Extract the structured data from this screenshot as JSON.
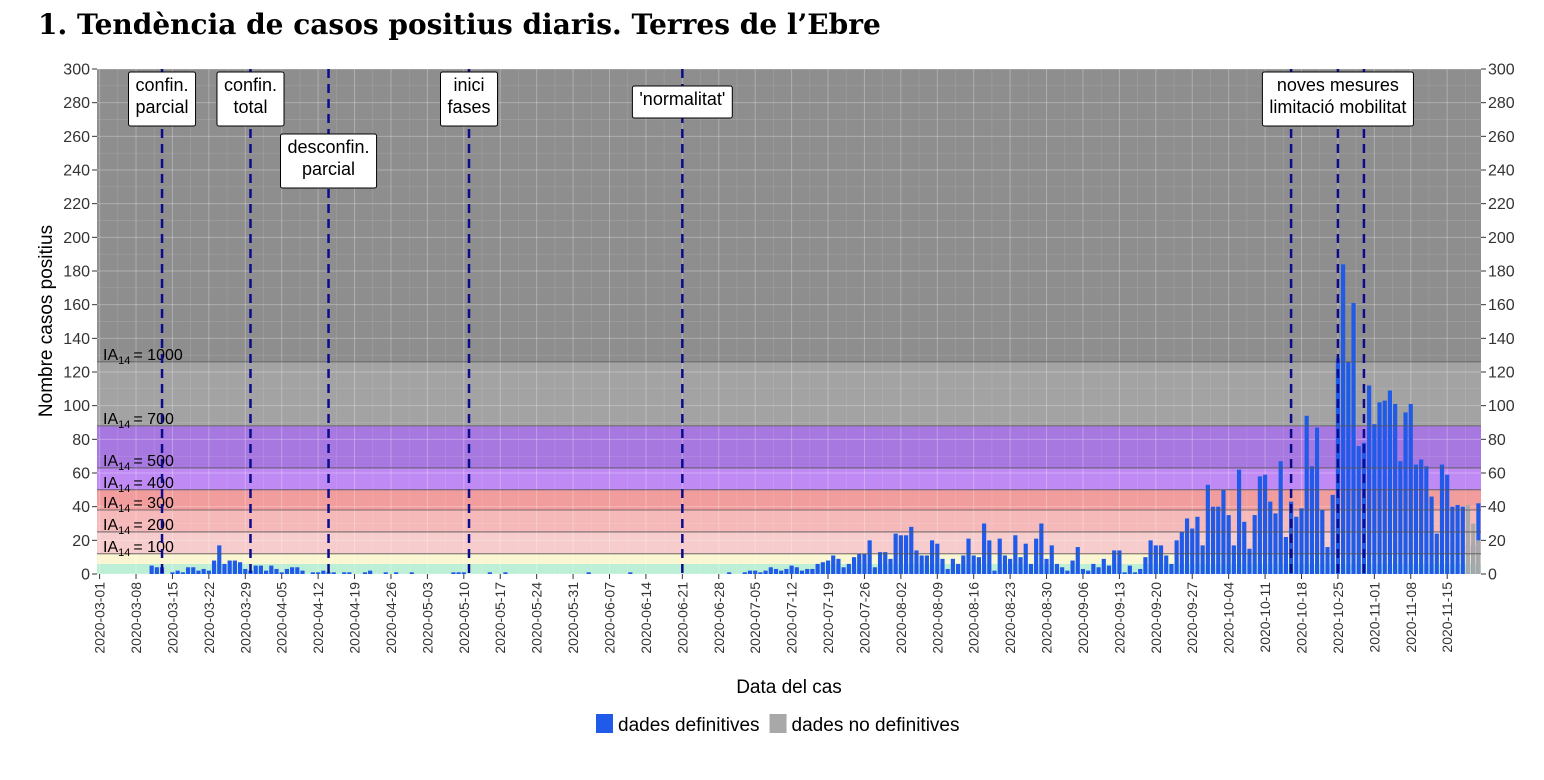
{
  "chart_data": {
    "type": "bar",
    "title": "1.  Tendència de casos positius diaris.  Terres de l’Ebre",
    "xlabel": "Data del cas",
    "ylabel": "Nombre casos positius",
    "ylim": [
      0,
      300
    ],
    "yticks": [
      0,
      20,
      40,
      60,
      80,
      100,
      120,
      140,
      160,
      180,
      200,
      220,
      240,
      260,
      280,
      300
    ],
    "x_start": "2020-03-01",
    "x_end": "2020-11-21",
    "x_tick_labels": [
      "2020-03-01",
      "2020-03-08",
      "2020-03-15",
      "2020-03-22",
      "2020-03-29",
      "2020-04-05",
      "2020-04-12",
      "2020-04-19",
      "2020-04-26",
      "2020-05-03",
      "2020-05-10",
      "2020-05-17",
      "2020-05-24",
      "2020-05-31",
      "2020-06-07",
      "2020-06-14",
      "2020-06-21",
      "2020-06-28",
      "2020-07-05",
      "2020-07-12",
      "2020-07-19",
      "2020-07-26",
      "2020-08-02",
      "2020-08-09",
      "2020-08-16",
      "2020-08-23",
      "2020-08-30",
      "2020-09-06",
      "2020-09-13",
      "2020-09-20",
      "2020-09-27",
      "2020-10-04",
      "2020-10-11",
      "2020-10-18",
      "2020-10-25",
      "2020-11-01",
      "2020-11-08",
      "2020-11-15"
    ],
    "bands": [
      {
        "from": 0,
        "to": 6,
        "color": "#bdefd6"
      },
      {
        "from": 6,
        "to": 12,
        "color": "#fbf6d2"
      },
      {
        "from": 12,
        "to": 25,
        "color": "#f7cccd"
      },
      {
        "from": 25,
        "to": 38,
        "color": "#f5b9ba"
      },
      {
        "from": 38,
        "to": 50,
        "color": "#f29d9d"
      },
      {
        "from": 50,
        "to": 63,
        "color": "#c08af5"
      },
      {
        "from": 63,
        "to": 88,
        "color": "#a778e0"
      },
      {
        "from": 88,
        "to": 126,
        "color": "#a3a3a3"
      },
      {
        "from": 126,
        "to": 300,
        "color": "#8e8e8e"
      }
    ],
    "thresholds": [
      {
        "base": "IA",
        "sub": "14",
        "value": "= 100",
        "y": 12
      },
      {
        "base": "IA",
        "sub": "14",
        "value": "= 200",
        "y": 25
      },
      {
        "base": "IA",
        "sub": "14",
        "value": "= 300",
        "y": 38
      },
      {
        "base": "IA",
        "sub": "14",
        "value": "= 400",
        "y": 50
      },
      {
        "base": "IA",
        "sub": "14",
        "value": "= 500",
        "y": 63
      },
      {
        "base": "IA",
        "sub": "14",
        "value": "= 700",
        "y": 88
      },
      {
        "base": "IA",
        "sub": "14",
        "value": "= 1000",
        "y": 126
      }
    ],
    "events": [
      {
        "date": "2020-03-13",
        "lines": [
          "confin.",
          "parcial"
        ],
        "pos": "top"
      },
      {
        "date": "2020-03-30",
        "lines": [
          "confin.",
          "total"
        ],
        "pos": "top"
      },
      {
        "date": "2020-04-14",
        "lines": [
          "desconfin.",
          "parcial"
        ],
        "pos": "mid"
      },
      {
        "date": "2020-05-11",
        "lines": [
          "inici",
          "fases"
        ],
        "pos": "top"
      },
      {
        "date": "2020-06-21",
        "lines": [
          "'normalitat'"
        ],
        "pos": "single"
      },
      {
        "date": "2020-10-16",
        "lines": [],
        "pos": "none"
      },
      {
        "date": "2020-10-25",
        "lines": [
          "noves mesures",
          "limitació mobilitat"
        ],
        "pos": "top"
      },
      {
        "date": "2020-10-30",
        "lines": [],
        "pos": "none"
      }
    ],
    "series": [
      {
        "name": "dades definitives",
        "color": "#1f5ae8",
        "start": "2020-03-01",
        "values": [
          0,
          0,
          0,
          0,
          0,
          0,
          0,
          0,
          0,
          0,
          5,
          4,
          4,
          0,
          1,
          2,
          1,
          4,
          4,
          2,
          3,
          2,
          8,
          17,
          6,
          8,
          8,
          7,
          3,
          2,
          5,
          5,
          2,
          5,
          3,
          1,
          3,
          4,
          4,
          2,
          0,
          1,
          1,
          2,
          1,
          1,
          0,
          1,
          1,
          0,
          0,
          1,
          2,
          0,
          0,
          1,
          0,
          1,
          0,
          0,
          1,
          0,
          0,
          0,
          0,
          0,
          0,
          0,
          1,
          1,
          1,
          0,
          0,
          0,
          0,
          1,
          0,
          0,
          1,
          0,
          0,
          0,
          0,
          0,
          0,
          0,
          0,
          0,
          0,
          0,
          0,
          0,
          0,
          0,
          1,
          0,
          0,
          0,
          0,
          0,
          0,
          0,
          1,
          0,
          0,
          0,
          0,
          0,
          0,
          0,
          0,
          0,
          0,
          0,
          0,
          0,
          0,
          0,
          0,
          0,
          0,
          1,
          0,
          0,
          1,
          2,
          2,
          1,
          2,
          4,
          3,
          2,
          3,
          5,
          4,
          2,
          3,
          3,
          6,
          7,
          8,
          11,
          9,
          4,
          6,
          10,
          12,
          12,
          20,
          4,
          13,
          13,
          9,
          24,
          23,
          23,
          28,
          14,
          11,
          11,
          20,
          18,
          9,
          3,
          9,
          6,
          11,
          21,
          11,
          10,
          30,
          20,
          2,
          21,
          11,
          9,
          23,
          10,
          18,
          6,
          21,
          30,
          9,
          17,
          6,
          4,
          2,
          8,
          16,
          3,
          2,
          6,
          4,
          9,
          5,
          14,
          14,
          1,
          5,
          1,
          3,
          10,
          20,
          17,
          17,
          11,
          6,
          20,
          25,
          33,
          27,
          34,
          17,
          53,
          40,
          40,
          50,
          35,
          17,
          62,
          31,
          15,
          35,
          58,
          59,
          43,
          36,
          67,
          22,
          43,
          34,
          39,
          94,
          64,
          87,
          38,
          16,
          47,
          128,
          184,
          126,
          161,
          76,
          78,
          112,
          89,
          102,
          103,
          109,
          101,
          67,
          96,
          101,
          65,
          68,
          64,
          46,
          24,
          65,
          59,
          40,
          41,
          40,
          17,
          17,
          42
        ]
      },
      {
        "name": "dades no definitives",
        "color": "#a8a8a8",
        "start": "2020-11-19",
        "values": [
          41,
          30,
          20
        ]
      }
    ],
    "legend_position": "bottom",
    "grid": true
  }
}
